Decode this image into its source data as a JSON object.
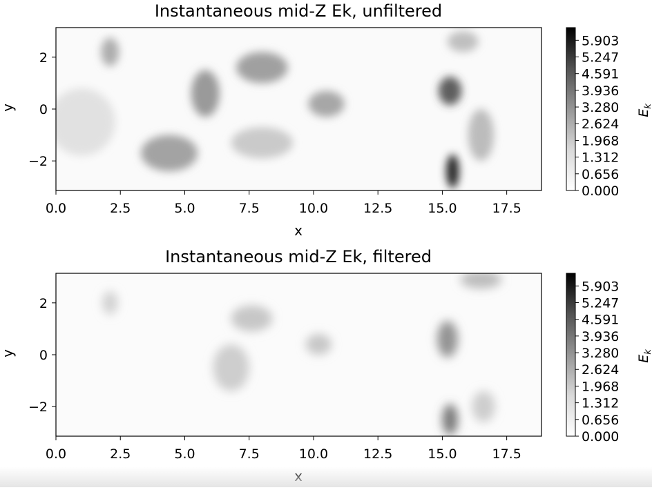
{
  "chart_data": [
    {
      "type": "heatmap",
      "title": "Instantaneous mid-Z Ek, unfiltered",
      "xlabel": "x",
      "ylabel": "y",
      "xlim": [
        0,
        18.85
      ],
      "ylim": [
        -3.14,
        3.14
      ],
      "x_ticks": [
        "0.0",
        "2.5",
        "5.0",
        "7.5",
        "10.0",
        "12.5",
        "15.0",
        "17.5"
      ],
      "x_tick_values": [
        0,
        2.5,
        5,
        7.5,
        10,
        12.5,
        15,
        17.5
      ],
      "y_ticks": [
        "−2",
        "0",
        "2"
      ],
      "y_tick_values": [
        -2,
        0,
        2
      ],
      "colormap": "Greys",
      "colorbar": {
        "label": "E_k",
        "label_main": "E",
        "label_sub": "k",
        "vmin": 0,
        "vmax": 6.4,
        "ticks": [
          "0.000",
          "0.656",
          "1.312",
          "1.968",
          "2.624",
          "3.280",
          "3.936",
          "4.591",
          "5.247",
          "5.903"
        ],
        "tick_values": [
          0,
          0.656,
          1.312,
          1.968,
          2.624,
          3.28,
          3.936,
          4.591,
          5.247,
          5.903
        ]
      },
      "features": [
        {
          "x": 2.1,
          "y": 2.2,
          "sx": 0.35,
          "sy": 0.55,
          "value": 2.0
        },
        {
          "x": 5.8,
          "y": 0.6,
          "sx": 0.55,
          "sy": 0.9,
          "value": 2.6
        },
        {
          "x": 4.4,
          "y": -1.7,
          "sx": 1.1,
          "sy": 0.7,
          "value": 2.3
        },
        {
          "x": 8.0,
          "y": 1.6,
          "sx": 1.0,
          "sy": 0.6,
          "value": 2.4
        },
        {
          "x": 10.5,
          "y": 0.2,
          "sx": 0.7,
          "sy": 0.5,
          "value": 2.2
        },
        {
          "x": 15.3,
          "y": 0.7,
          "sx": 0.45,
          "sy": 0.55,
          "value": 4.5
        },
        {
          "x": 15.4,
          "y": -2.4,
          "sx": 0.25,
          "sy": 0.65,
          "value": 6.2
        },
        {
          "x": 16.5,
          "y": -1.0,
          "sx": 0.5,
          "sy": 1.0,
          "value": 1.6
        },
        {
          "x": 15.8,
          "y": 2.6,
          "sx": 0.6,
          "sy": 0.4,
          "value": 1.5
        },
        {
          "x": 8.0,
          "y": -1.3,
          "sx": 1.2,
          "sy": 0.6,
          "value": 1.2
        },
        {
          "x": 1.0,
          "y": -0.5,
          "sx": 1.3,
          "sy": 1.3,
          "value": 0.6
        }
      ]
    },
    {
      "type": "heatmap",
      "title": "Instantaneous mid-Z Ek, filtered",
      "xlabel": "x",
      "ylabel": "y",
      "xlim": [
        0,
        18.85
      ],
      "ylim": [
        -3.14,
        3.14
      ],
      "x_ticks": [
        "0.0",
        "2.5",
        "5.0",
        "7.5",
        "10.0",
        "12.5",
        "15.0",
        "17.5"
      ],
      "x_tick_values": [
        0,
        2.5,
        5,
        7.5,
        10,
        12.5,
        15,
        17.5
      ],
      "y_ticks": [
        "−2",
        "0",
        "2"
      ],
      "y_tick_values": [
        -2,
        0,
        2
      ],
      "colormap": "Greys",
      "colorbar": {
        "label": "E_k",
        "label_main": "E",
        "label_sub": "k",
        "vmin": 0,
        "vmax": 6.4,
        "ticks": [
          "0.000",
          "0.656",
          "1.312",
          "1.968",
          "2.624",
          "3.280",
          "3.936",
          "4.591",
          "5.247",
          "5.903"
        ],
        "tick_values": [
          0,
          0.656,
          1.312,
          1.968,
          2.624,
          3.28,
          3.936,
          4.591,
          5.247,
          5.903
        ]
      },
      "features": [
        {
          "x": 2.1,
          "y": 2.0,
          "sx": 0.3,
          "sy": 0.45,
          "value": 1.0
        },
        {
          "x": 7.6,
          "y": 1.4,
          "sx": 0.8,
          "sy": 0.5,
          "value": 1.3
        },
        {
          "x": 6.8,
          "y": -0.5,
          "sx": 0.7,
          "sy": 0.9,
          "value": 1.1
        },
        {
          "x": 10.2,
          "y": 0.4,
          "sx": 0.5,
          "sy": 0.4,
          "value": 1.3
        },
        {
          "x": 15.2,
          "y": 0.6,
          "sx": 0.4,
          "sy": 0.7,
          "value": 2.8
        },
        {
          "x": 15.3,
          "y": -2.5,
          "sx": 0.3,
          "sy": 0.6,
          "value": 3.6
        },
        {
          "x": 16.6,
          "y": -2.0,
          "sx": 0.45,
          "sy": 0.6,
          "value": 1.1
        },
        {
          "x": 16.5,
          "y": 2.9,
          "sx": 0.8,
          "sy": 0.35,
          "value": 1.6
        }
      ]
    }
  ]
}
